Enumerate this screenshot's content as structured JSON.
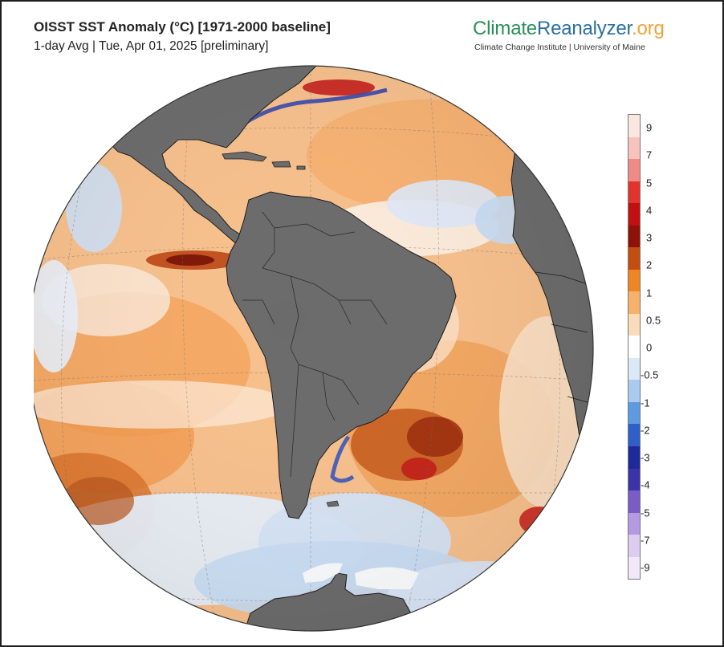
{
  "header": {
    "title": "OISST SST Anomaly (°C) [1971-2000 baseline]",
    "subtitle": "1-day Avg | Tue, Apr 01, 2025 [preliminary]"
  },
  "logo": {
    "part1": "Climate",
    "part2": "Reanalyzer",
    "part3": ".org",
    "subtitle": "Climate Change Institute | University of Maine"
  },
  "legend": {
    "unit": "°C",
    "labels": [
      "9",
      "7",
      "5",
      "4",
      "3",
      "2",
      "1",
      "0.5",
      "0",
      "-0.5",
      "-1",
      "-2",
      "-3",
      "-4",
      "-5",
      "-7",
      "-9"
    ],
    "colors": [
      "#fbe6e2",
      "#f8c3bd",
      "#f08a85",
      "#e3332d",
      "#c21010",
      "#8e1208",
      "#c44d10",
      "#ef8525",
      "#f6b26a",
      "#fbdcba",
      "#ffffff",
      "#dbe8f8",
      "#a9cbef",
      "#5e9ae0",
      "#2f5fc8",
      "#1d2a9a",
      "#3b33a8",
      "#7a5cc7",
      "#b49ae0",
      "#dccdf0",
      "#f1e8f8"
    ]
  },
  "map": {
    "projection": "orthographic",
    "center": "South America / Atlantic",
    "land_color": "#6b6b6b",
    "coast_color": "#1a1a1a"
  }
}
